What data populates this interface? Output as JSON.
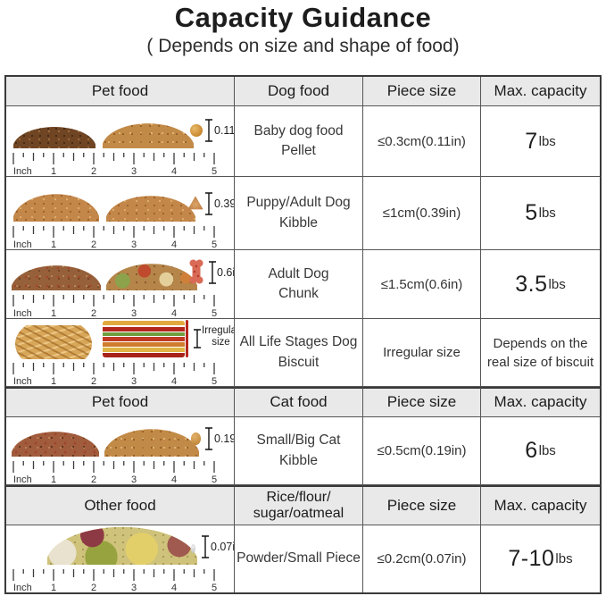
{
  "title": "Capacity Guidance",
  "subtitle": "( Depends on size and shape of food)",
  "ruler": {
    "label": "Inch",
    "marks": [
      "1",
      "2",
      "3",
      "4",
      "5"
    ]
  },
  "colors": {
    "header_bg": "#e9e9e9",
    "border": "#3a3a3a",
    "accent_red": "#b5271d"
  },
  "sections": [
    {
      "header": {
        "col1": "Pet food",
        "col2": "Dog food",
        "col2_line2": "",
        "col3": "Piece size",
        "col4": "Max. capacity"
      },
      "rows": [
        {
          "sample_icon": "pellet-piles-and-single-pellet",
          "measure": "0.11in",
          "food_line1": "Baby dog food",
          "food_line2": "Pellet",
          "piece_size": "≤0.3cm(0.11in)",
          "capacity_value": "7",
          "capacity_unit": "lbs"
        },
        {
          "sample_icon": "kibble-piles-and-single-kibble",
          "measure": "0.39in",
          "food_line1": "Puppy/Adult Dog",
          "food_line2": "Kibble",
          "piece_size": "≤1cm(0.39in)",
          "capacity_value": "5",
          "capacity_unit": "lbs"
        },
        {
          "sample_icon": "chunk-piles-and-bone-chunk",
          "measure": "0.6in",
          "food_line1": "Adult Dog",
          "food_line2": "Chunk",
          "piece_size": "≤1.5cm(0.6in)",
          "capacity_value": "3.5",
          "capacity_unit": "lbs"
        },
        {
          "sample_icon": "biscuits-and-striped-sticks",
          "measure_line1": "Irregular",
          "measure_line2": "size",
          "food_line1": "All Life Stages Dog",
          "food_line2": "Biscuit",
          "piece_size": "Irregular size",
          "capacity_note_line1": "Depends on the",
          "capacity_note_line2": "real size of biscuit"
        }
      ]
    },
    {
      "header": {
        "col1": "Pet food",
        "col2": "Cat food",
        "col2_line2": "",
        "col3": "Piece size",
        "col4": "Max. capacity"
      },
      "rows": [
        {
          "sample_icon": "cat-kibble-piles-and-single-kibble",
          "measure": "0.19in",
          "food_line1": "Small/Big Cat",
          "food_line2": "Kibble",
          "piece_size": "≤0.5cm(0.19in)",
          "capacity_value": "6",
          "capacity_unit": "lbs"
        }
      ]
    },
    {
      "header": {
        "col1": "Other food",
        "col2": "Rice/flour/",
        "col2_line2": "sugar/oatmeal",
        "col3": "Piece size",
        "col4": "Max. capacity"
      },
      "rows": [
        {
          "sample_icon": "mixed-grains-pile-and-single-grain",
          "measure": "0.07in",
          "food_line1": "Powder/Small Piece",
          "food_line2": "",
          "piece_size": "≤0.2cm(0.07in)",
          "capacity_value": "7-10",
          "capacity_unit": "lbs"
        }
      ]
    }
  ],
  "chart_data": {
    "type": "table",
    "title": "Capacity Guidance",
    "subtitle": "( Depends on size and shape of food)",
    "sections": [
      {
        "columns": [
          "Pet food",
          "Dog food",
          "Piece size",
          "Max. capacity"
        ],
        "rows": [
          [
            "Baby dog food Pellet",
            "≤0.3cm(0.11in)",
            "7lbs"
          ],
          [
            "Puppy/Adult Dog Kibble",
            "≤1cm(0.39in)",
            "5lbs"
          ],
          [
            "Adult Dog Chunk",
            "≤1.5cm(0.6in)",
            "3.5lbs"
          ],
          [
            "All Life Stages Dog Biscuit",
            "Irregular size",
            "Depends on the real size of biscuit"
          ]
        ]
      },
      {
        "columns": [
          "Pet food",
          "Cat food",
          "Piece size",
          "Max. capacity"
        ],
        "rows": [
          [
            "Small/Big Cat Kibble",
            "≤0.5cm(0.19in)",
            "6lbs"
          ]
        ]
      },
      {
        "columns": [
          "Other food",
          "Rice/flour/sugar/oatmeal",
          "Piece size",
          "Max. capacity"
        ],
        "rows": [
          [
            "Powder/Small Piece",
            "≤0.2cm(0.07in)",
            "7-10lbs"
          ]
        ]
      }
    ]
  }
}
